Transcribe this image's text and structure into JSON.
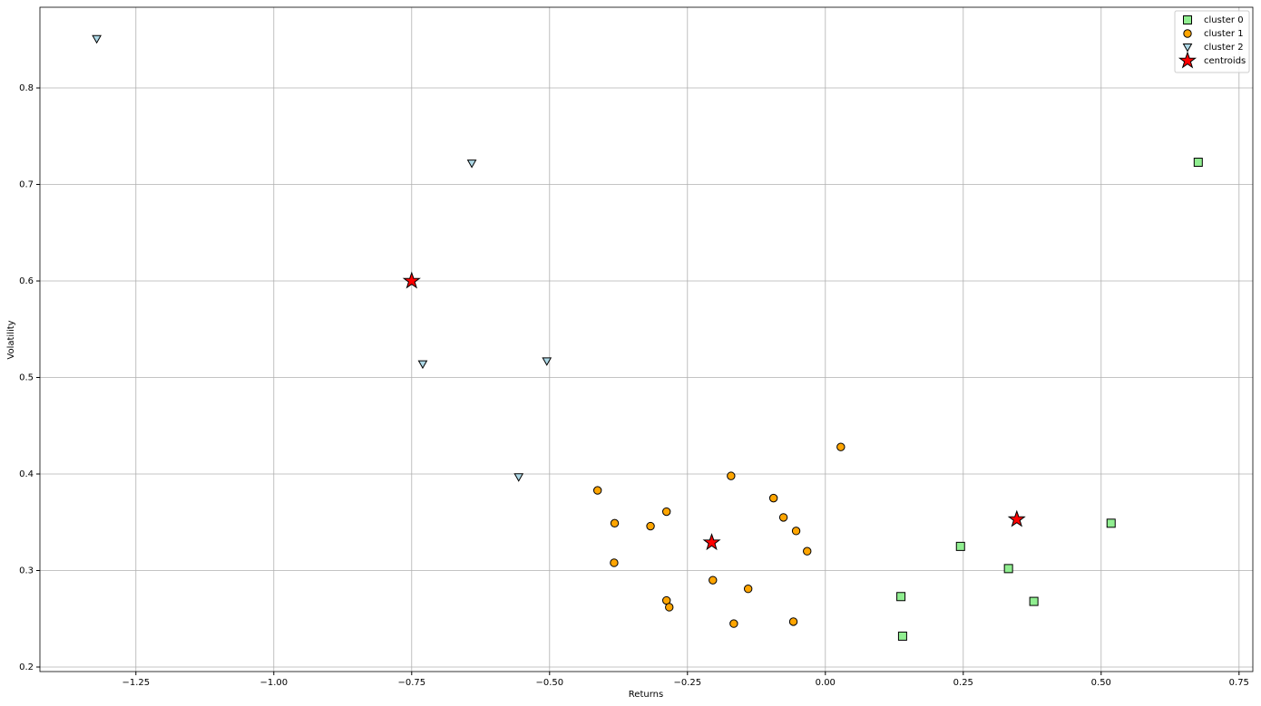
{
  "chart_data": {
    "type": "scatter",
    "x_label": "Returns",
    "y_label": "Volatility",
    "xlim": [
      -1.424,
      0.775
    ],
    "ylim": [
      0.1953,
      0.8836
    ],
    "xticks": [
      {
        "value": -1.25,
        "label": "−1.25"
      },
      {
        "value": -1.0,
        "label": "−1.00"
      },
      {
        "value": -0.75,
        "label": "−0.75"
      },
      {
        "value": -0.5,
        "label": "−0.50"
      },
      {
        "value": -0.25,
        "label": "−0.25"
      },
      {
        "value": 0,
        "label": "0.00"
      },
      {
        "value": 0.25,
        "label": "0.25"
      },
      {
        "value": 0.5,
        "label": "0.50"
      },
      {
        "value": 0.75,
        "label": "0.75"
      }
    ],
    "yticks": [
      0.2,
      0.3,
      0.4,
      0.5,
      0.6,
      0.7,
      0.8
    ],
    "grid": true,
    "legend": "upper right",
    "series": [
      {
        "name": "cluster 0",
        "color": "#90ee90",
        "marker": "square",
        "x": [
          0.676,
          0.518,
          0.245,
          0.332,
          0.378,
          0.137,
          0.14
        ],
        "values": [
          0.723,
          0.349,
          0.325,
          0.302,
          0.268,
          0.273,
          0.232
        ]
      },
      {
        "name": "cluster 1",
        "color": "#ffa500",
        "marker": "circle",
        "x": [
          0.028,
          -0.413,
          -0.382,
          -0.288,
          -0.317,
          -0.171,
          -0.094,
          -0.076,
          -0.053,
          -0.033,
          -0.383,
          -0.204,
          -0.14,
          -0.288,
          -0.283,
          -0.166,
          -0.058
        ],
        "values": [
          0.428,
          0.383,
          0.349,
          0.361,
          0.346,
          0.398,
          0.375,
          0.355,
          0.341,
          0.32,
          0.308,
          0.29,
          0.281,
          0.269,
          0.262,
          0.245,
          0.247
        ]
      },
      {
        "name": "cluster 2",
        "color": "#add8e6",
        "marker": "triangle-down",
        "x": [
          -1.321,
          -0.641,
          -0.73,
          -0.505,
          -0.556
        ],
        "values": [
          0.851,
          0.722,
          0.514,
          0.517,
          0.397
        ]
      },
      {
        "name": "centroids",
        "color": "#ff0000",
        "marker": "star",
        "x": [
          -0.75,
          -0.206,
          0.347
        ],
        "values": [
          0.6,
          0.329,
          0.353
        ]
      }
    ]
  }
}
